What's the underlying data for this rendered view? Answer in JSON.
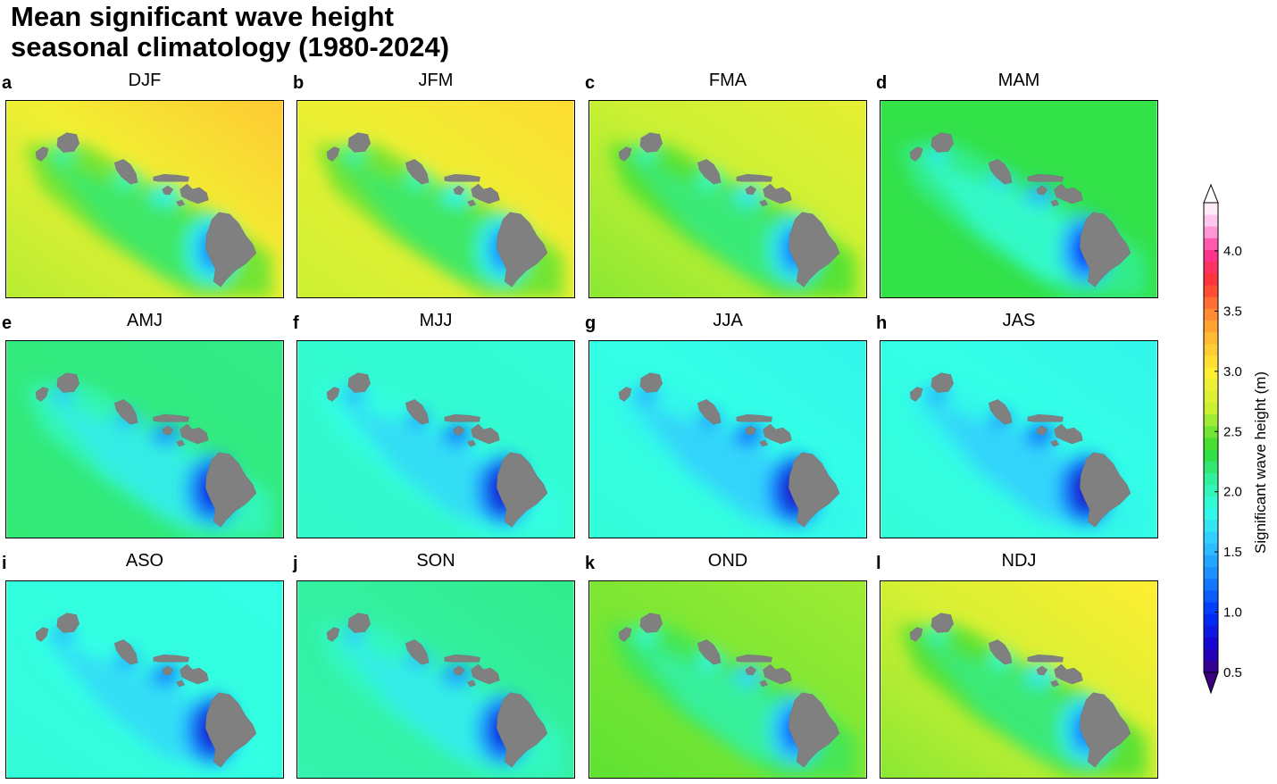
{
  "title": "Mean significant wave height\nseasonal climatology (1980-2024)",
  "colorbar": {
    "label": "Significant wave height (m)",
    "ticks": [
      "0.5",
      "1.0",
      "1.5",
      "2.0",
      "2.5",
      "3.0",
      "3.5",
      "4.0"
    ],
    "range": [
      0.5,
      4.4
    ],
    "stops": [
      [
        0.5,
        "#3b0080"
      ],
      [
        0.7,
        "#1a00c8"
      ],
      [
        1.0,
        "#0033ff"
      ],
      [
        1.3,
        "#1a8cff"
      ],
      [
        1.6,
        "#33ccff"
      ],
      [
        1.85,
        "#33ffe6"
      ],
      [
        2.1,
        "#33f0a0"
      ],
      [
        2.35,
        "#33dd33"
      ],
      [
        2.7,
        "#ccf033"
      ],
      [
        3.0,
        "#ffee33"
      ],
      [
        3.25,
        "#ffc033"
      ],
      [
        3.5,
        "#ff8533"
      ],
      [
        3.75,
        "#ff3333"
      ],
      [
        4.0,
        "#ff3399"
      ],
      [
        4.2,
        "#ffb3e6"
      ],
      [
        4.4,
        "#ffffff"
      ]
    ]
  },
  "chart_data": {
    "type": "heatmap",
    "variable": "Significant wave height (m)",
    "panels": [
      {
        "letter": "a",
        "season": "DJF",
        "nw": 3.2,
        "se": 2.65,
        "lee": 2.3
      },
      {
        "letter": "b",
        "season": "JFM",
        "nw": 3.1,
        "se": 2.7,
        "lee": 2.3
      },
      {
        "letter": "c",
        "season": "FMA",
        "nw": 2.85,
        "se": 2.55,
        "lee": 2.25
      },
      {
        "letter": "d",
        "season": "MAM",
        "nw": 2.3,
        "se": 2.3,
        "lee": 2.0
      },
      {
        "letter": "e",
        "season": "AMJ",
        "nw": 2.15,
        "se": 2.2,
        "lee": 1.85
      },
      {
        "letter": "f",
        "season": "MJJ",
        "nw": 1.9,
        "se": 1.95,
        "lee": 1.75
      },
      {
        "letter": "g",
        "season": "JJA",
        "nw": 1.8,
        "se": 1.9,
        "lee": 1.7
      },
      {
        "letter": "h",
        "season": "JAS",
        "nw": 1.8,
        "se": 1.9,
        "lee": 1.7
      },
      {
        "letter": "i",
        "season": "ASO",
        "nw": 1.85,
        "se": 1.9,
        "lee": 1.75
      },
      {
        "letter": "j",
        "season": "SON",
        "nw": 2.15,
        "se": 2.05,
        "lee": 1.85
      },
      {
        "letter": "k",
        "season": "OND",
        "nw": 2.6,
        "se": 2.45,
        "lee": 2.15
      },
      {
        "letter": "l",
        "season": "NDJ",
        "nw": 3.0,
        "se": 2.55,
        "lee": 2.25
      }
    ]
  }
}
